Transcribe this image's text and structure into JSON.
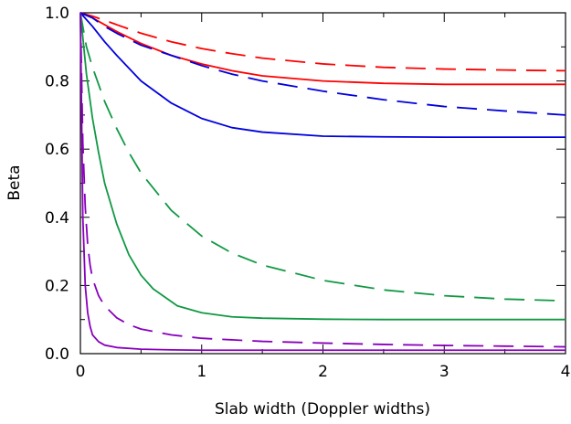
{
  "chart_data": {
    "type": "line",
    "title": "",
    "xlabel": "Slab width (Doppler widths)",
    "ylabel": "Beta",
    "xlim": [
      0,
      4
    ],
    "ylim": [
      0,
      1
    ],
    "xticks": [
      0,
      1,
      2,
      3,
      4
    ],
    "xtick_labels": [
      "0",
      "1",
      "2",
      "3",
      "4"
    ],
    "yticks": [
      0,
      0.2,
      0.4,
      0.6,
      0.8,
      1.0
    ],
    "ytick_labels": [
      "0.0",
      "0.2",
      "0.4",
      "0.6",
      "0.8",
      "1.0"
    ],
    "grid": false,
    "legend": "none",
    "series": [
      {
        "color": "#ff0000",
        "dash": "solid",
        "x": [
          0,
          0.1,
          0.2,
          0.3,
          0.5,
          0.75,
          1.0,
          1.25,
          1.5,
          2.0,
          2.5,
          3.0,
          3.5,
          4.0
        ],
        "y": [
          1.0,
          0.985,
          0.965,
          0.945,
          0.91,
          0.875,
          0.85,
          0.83,
          0.815,
          0.8,
          0.793,
          0.79,
          0.79,
          0.79
        ]
      },
      {
        "color": "#ff0000",
        "dash": "dashed",
        "x": [
          0,
          0.1,
          0.2,
          0.3,
          0.5,
          0.75,
          1.0,
          1.25,
          1.5,
          2.0,
          2.5,
          3.0,
          3.5,
          4.0
        ],
        "y": [
          1.0,
          0.99,
          0.978,
          0.965,
          0.94,
          0.915,
          0.895,
          0.88,
          0.867,
          0.85,
          0.84,
          0.835,
          0.832,
          0.83
        ]
      },
      {
        "color": "#0000dd",
        "dash": "solid",
        "x": [
          0,
          0.1,
          0.2,
          0.3,
          0.5,
          0.75,
          1.0,
          1.25,
          1.5,
          2.0,
          2.5,
          3.0,
          3.5,
          4.0
        ],
        "y": [
          1.0,
          0.96,
          0.915,
          0.875,
          0.8,
          0.735,
          0.69,
          0.663,
          0.65,
          0.638,
          0.636,
          0.635,
          0.635,
          0.635
        ]
      },
      {
        "color": "#0000dd",
        "dash": "dashed",
        "x": [
          0,
          0.1,
          0.2,
          0.3,
          0.5,
          0.75,
          1.0,
          1.25,
          1.5,
          2.0,
          2.5,
          3.0,
          3.5,
          4.0
        ],
        "y": [
          1.0,
          0.985,
          0.96,
          0.94,
          0.905,
          0.875,
          0.845,
          0.82,
          0.8,
          0.77,
          0.745,
          0.725,
          0.712,
          0.7
        ]
      },
      {
        "color": "#119944",
        "dash": "solid",
        "x": [
          0,
          0.05,
          0.1,
          0.15,
          0.2,
          0.3,
          0.4,
          0.5,
          0.6,
          0.8,
          1.0,
          1.25,
          1.5,
          2.0,
          2.5,
          3.0,
          3.5,
          4.0
        ],
        "y": [
          1.0,
          0.82,
          0.69,
          0.59,
          0.5,
          0.38,
          0.29,
          0.23,
          0.19,
          0.14,
          0.12,
          0.108,
          0.104,
          0.101,
          0.1,
          0.1,
          0.1,
          0.1
        ]
      },
      {
        "color": "#119944",
        "dash": "dashed",
        "x": [
          0,
          0.05,
          0.1,
          0.2,
          0.3,
          0.4,
          0.5,
          0.75,
          1.0,
          1.25,
          1.5,
          2.0,
          2.5,
          3.0,
          3.5,
          4.0
        ],
        "y": [
          1.0,
          0.9,
          0.84,
          0.74,
          0.66,
          0.59,
          0.53,
          0.42,
          0.345,
          0.295,
          0.26,
          0.215,
          0.187,
          0.17,
          0.16,
          0.155
        ]
      },
      {
        "color": "#8800bb",
        "dash": "solid",
        "x": [
          0,
          0.02,
          0.04,
          0.06,
          0.08,
          0.1,
          0.15,
          0.2,
          0.3,
          0.5,
          0.75,
          1.0,
          2.0,
          3.0,
          4.0
        ],
        "y": [
          1.0,
          0.4,
          0.2,
          0.12,
          0.08,
          0.055,
          0.035,
          0.025,
          0.018,
          0.013,
          0.011,
          0.01,
          0.01,
          0.01,
          0.01
        ]
      },
      {
        "color": "#8800bb",
        "dash": "dashed",
        "x": [
          0,
          0.02,
          0.04,
          0.06,
          0.08,
          0.1,
          0.15,
          0.2,
          0.3,
          0.4,
          0.5,
          0.75,
          1.0,
          1.5,
          2.0,
          2.5,
          3.0,
          3.5,
          4.0
        ],
        "y": [
          1.0,
          0.62,
          0.43,
          0.32,
          0.26,
          0.22,
          0.17,
          0.14,
          0.105,
          0.085,
          0.072,
          0.055,
          0.045,
          0.036,
          0.031,
          0.027,
          0.024,
          0.022,
          0.02
        ]
      }
    ]
  }
}
